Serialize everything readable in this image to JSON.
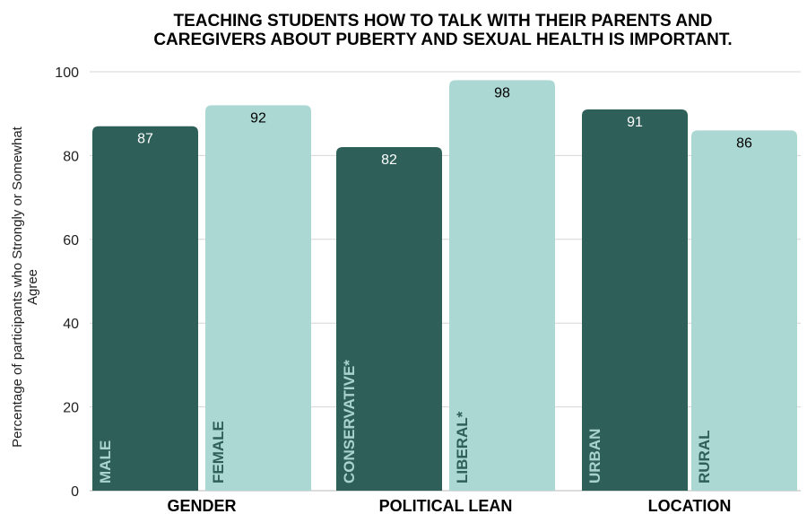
{
  "chart_data": {
    "type": "bar",
    "title_lines": [
      "TEACHING STUDENTS HOW TO TALK WITH THEIR PARENTS AND",
      "CAREGIVERS ABOUT PUBERTY AND SEXUAL HEALTH IS IMPORTANT."
    ],
    "ylabel_lines": [
      "Percentage of participants who Strongly or Somewhat",
      "Agree"
    ],
    "xlabel": "",
    "ylim": [
      0,
      100
    ],
    "yticks": [
      0,
      20,
      40,
      60,
      80,
      100
    ],
    "grid": true,
    "groups": [
      "GENDER",
      "POLITICAL LEAN",
      "LOCATION"
    ],
    "categories": [
      "MALE",
      "FEMALE",
      "CONSERVATIVE*",
      "LIBERAL*",
      "URBAN",
      "RURAL"
    ],
    "category_group": [
      0,
      0,
      1,
      1,
      2,
      2
    ],
    "values": [
      87,
      92,
      82,
      98,
      91,
      86
    ],
    "colors": {
      "dark": "#2e5f59",
      "light": "#acd8d4",
      "dark_text": "#ffffff",
      "light_text": "#000000",
      "dark_cat_text": "#a9d3cf",
      "light_cat_text": "#2e5f59"
    },
    "bar_shades": [
      "dark",
      "light",
      "dark",
      "light",
      "dark",
      "light"
    ]
  }
}
